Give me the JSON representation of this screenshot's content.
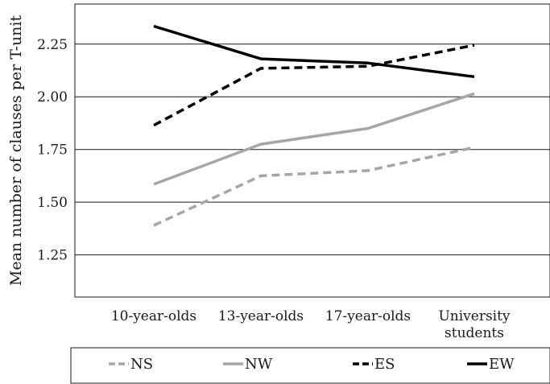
{
  "chart_data": {
    "type": "line",
    "title": "",
    "xlabel": "",
    "ylabel": "Mean number of clauses per T-unit",
    "categories": [
      "10-year-olds",
      "13-year-olds",
      "17-year-olds",
      "University students"
    ],
    "category_lines": [
      [
        "10-year-olds"
      ],
      [
        "13-year-olds"
      ],
      [
        "17-year-olds"
      ],
      [
        "University",
        "students"
      ]
    ],
    "ylim": [
      1.05,
      2.44
    ],
    "yticks": [
      1.25,
      1.5,
      1.75,
      2.0,
      2.25
    ],
    "ytick_labels": [
      "1.25",
      "1.50",
      "1.75",
      "2.00",
      "2.25"
    ],
    "grid": "horizontal",
    "legend_position": "bottom",
    "series": [
      {
        "name": "NS",
        "values": [
          1.39,
          1.625,
          1.65,
          1.76
        ],
        "color": "#a6a6a6",
        "dashed": true
      },
      {
        "name": "NW",
        "values": [
          1.585,
          1.775,
          1.85,
          2.015
        ],
        "color": "#a6a6a6",
        "dashed": false
      },
      {
        "name": "ES",
        "values": [
          1.865,
          2.135,
          2.145,
          2.245
        ],
        "color": "#000000",
        "dashed": true
      },
      {
        "name": "EW",
        "values": [
          2.335,
          2.18,
          2.16,
          2.095
        ],
        "color": "#000000",
        "dashed": false
      }
    ]
  }
}
